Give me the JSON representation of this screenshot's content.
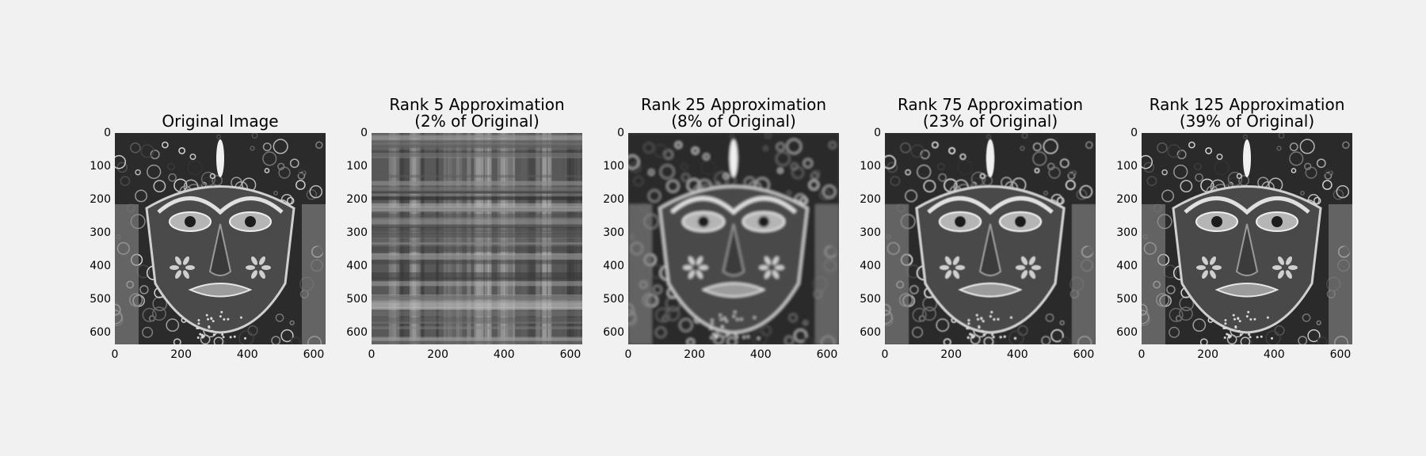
{
  "chart_data": [
    {
      "type": "image",
      "title": "Original Image",
      "rank": null,
      "colormap": "gray",
      "xlim": [
        0,
        636
      ],
      "ylim": [
        636,
        0
      ],
      "xticks": [
        "0",
        "200",
        "400",
        "600"
      ],
      "yticks": [
        "0",
        "100",
        "200",
        "300",
        "400",
        "500",
        "600"
      ],
      "grid": false
    },
    {
      "type": "image",
      "title": "Rank 5 Approximation\n(2% of Original)",
      "rank": 5,
      "percent_of_original": 2,
      "colormap": "gray",
      "xlim": [
        0,
        636
      ],
      "ylim": [
        636,
        0
      ],
      "xticks": [
        "0",
        "200",
        "400",
        "600"
      ],
      "yticks": [
        "0",
        "100",
        "200",
        "300",
        "400",
        "500",
        "600"
      ],
      "grid": false
    },
    {
      "type": "image",
      "title": "Rank 25 Approximation\n(8% of Original)",
      "rank": 25,
      "percent_of_original": 8,
      "colormap": "gray",
      "xlim": [
        0,
        636
      ],
      "ylim": [
        636,
        0
      ],
      "xticks": [
        "0",
        "200",
        "400",
        "600"
      ],
      "yticks": [
        "0",
        "100",
        "200",
        "300",
        "400",
        "500",
        "600"
      ],
      "grid": false
    },
    {
      "type": "image",
      "title": "Rank 75 Approximation\n(23% of Original)",
      "rank": 75,
      "percent_of_original": 23,
      "colormap": "gray",
      "xlim": [
        0,
        636
      ],
      "ylim": [
        636,
        0
      ],
      "xticks": [
        "0",
        "200",
        "400",
        "600"
      ],
      "yticks": [
        "0",
        "100",
        "200",
        "300",
        "400",
        "500",
        "600"
      ],
      "grid": false
    },
    {
      "type": "image",
      "title": "Rank 125 Approximation\n(39% of Original)",
      "rank": 125,
      "percent_of_original": 39,
      "colormap": "gray",
      "xlim": [
        0,
        636
      ],
      "ylim": [
        636,
        0
      ],
      "xticks": [
        "0",
        "200",
        "400",
        "600"
      ],
      "yticks": [
        "0",
        "100",
        "200",
        "300",
        "400",
        "500",
        "600"
      ],
      "grid": false
    }
  ],
  "colors": {
    "background": "#f1f1f1",
    "text": "#000000"
  }
}
